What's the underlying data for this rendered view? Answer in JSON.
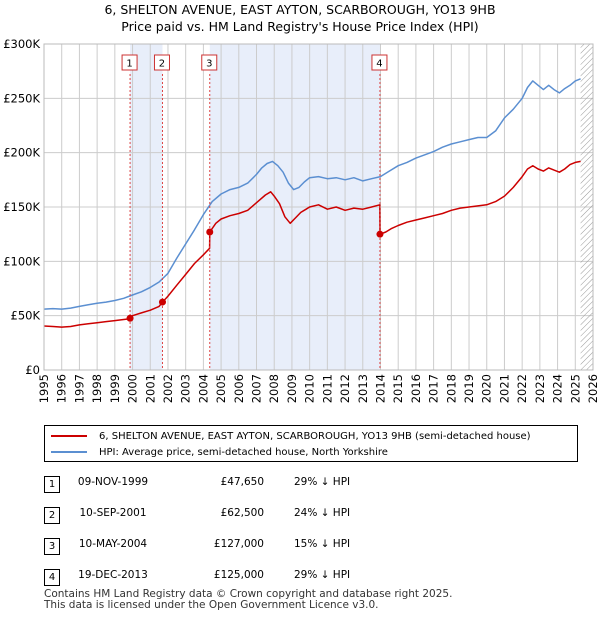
{
  "title": {
    "line1": "6, SHELTON AVENUE, EAST AYTON, SCARBOROUGH, YO13 9HB",
    "line2": "Price paid vs. HM Land Registry's House Price Index (HPI)"
  },
  "legend": {
    "price_label": "6, SHELTON AVENUE, EAST AYTON, SCARBOROUGH, YO13 9HB (semi-detached house)",
    "hpi_label": "HPI: Average price, semi-detached house, North Yorkshire"
  },
  "sales": [
    {
      "num": "1",
      "date": "09-NOV-1999",
      "price": "£47,650",
      "hpi": "29% ↓ HPI"
    },
    {
      "num": "2",
      "date": "10-SEP-2001",
      "price": "£62,500",
      "hpi": "24% ↓ HPI"
    },
    {
      "num": "3",
      "date": "10-MAY-2004",
      "price": "£127,000",
      "hpi": "15% ↓ HPI"
    },
    {
      "num": "4",
      "date": "19-DEC-2013",
      "price": "£125,000",
      "hpi": "29% ↓ HPI"
    }
  ],
  "footer": {
    "line1": "Contains HM Land Registry data © Crown copyright and database right 2025.",
    "line2": "This data is licensed under the Open Government Licence v3.0."
  },
  "colors": {
    "price": "#cc0000",
    "hpi": "#5b8fd1",
    "shade": "#e8eefa",
    "grid": "#cccccc",
    "marker_line": "#dd4444"
  },
  "chart_data": {
    "type": "line",
    "xlim": [
      1995,
      2026
    ],
    "ylim": [
      0,
      300000
    ],
    "x_ticks": [
      "1995",
      "1996",
      "1997",
      "1998",
      "1999",
      "2000",
      "2001",
      "2002",
      "2003",
      "2004",
      "2005",
      "2006",
      "2007",
      "2008",
      "2009",
      "2010",
      "2011",
      "2012",
      "2013",
      "2014",
      "2015",
      "2016",
      "2017",
      "2018",
      "2019",
      "2020",
      "2021",
      "2022",
      "2023",
      "2024",
      "2025",
      "2026"
    ],
    "y_ticks": [
      {
        "value": 0,
        "label": "£0"
      },
      {
        "value": 50000,
        "label": "£50K"
      },
      {
        "value": 100000,
        "label": "£100K"
      },
      {
        "value": 150000,
        "label": "£150K"
      },
      {
        "value": 200000,
        "label": "£200K"
      },
      {
        "value": 250000,
        "label": "£250K"
      },
      {
        "value": 300000,
        "label": "£300K"
      }
    ],
    "shaded_ranges": [
      [
        1999.86,
        2001.69
      ],
      [
        2004.36,
        2013.97
      ]
    ],
    "future_from": 2025.3,
    "series": [
      {
        "name": "6, SHELTON AVENUE, EAST AYTON, SCARBOROUGH, YO13 9HB (semi-detached house)",
        "x": [
          1995,
          1995.5,
          1996,
          1996.5,
          1997,
          1997.5,
          1998,
          1998.5,
          1999,
          1999.5,
          1999.85,
          1999.86,
          2000,
          2000.5,
          2001,
          2001.5,
          2001.69,
          2002,
          2002.5,
          2003,
          2003.5,
          2004,
          2004.35,
          2004.36,
          2004.7,
          2005,
          2005.5,
          2006,
          2006.5,
          2007,
          2007.5,
          2007.8,
          2008,
          2008.3,
          2008.6,
          2008.9,
          2009.2,
          2009.5,
          2009.8,
          2010,
          2010.5,
          2011,
          2011.5,
          2012,
          2012.5,
          2013,
          2013.5,
          2013.96,
          2013.97,
          2014.3,
          2014.6,
          2015,
          2015.5,
          2016,
          2016.5,
          2017,
          2017.5,
          2018,
          2018.5,
          2019,
          2019.5,
          2020,
          2020.5,
          2021,
          2021.5,
          2022,
          2022.3,
          2022.6,
          2022.9,
          2023.2,
          2023.5,
          2023.8,
          2024.1,
          2024.4,
          2024.7,
          2025,
          2025.3
        ],
        "values": [
          40500,
          40000,
          39500,
          40000,
          41500,
          42500,
          43500,
          44500,
          45500,
          46500,
          47200,
          47650,
          50000,
          52500,
          55000,
          58500,
          62500,
          68000,
          78000,
          88000,
          98000,
          106000,
          112000,
          127000,
          135000,
          139000,
          142000,
          144000,
          147000,
          154000,
          161000,
          164000,
          160000,
          153000,
          141000,
          135000,
          140000,
          145000,
          148000,
          150000,
          152000,
          148000,
          150000,
          147000,
          149000,
          148000,
          150000,
          152000,
          125000,
          127000,
          130000,
          133000,
          136000,
          138000,
          140000,
          142000,
          144000,
          147000,
          149000,
          150000,
          151000,
          152000,
          155000,
          160000,
          168000,
          178000,
          185000,
          188000,
          185000,
          183000,
          186000,
          184000,
          182000,
          185000,
          189000,
          191000,
          192000
        ]
      },
      {
        "name": "HPI: Average price, semi-detached house, North Yorkshire",
        "x": [
          1995,
          1995.5,
          1996,
          1996.5,
          1997,
          1997.5,
          1998,
          1998.5,
          1999,
          1999.5,
          2000,
          2000.5,
          2001,
          2001.5,
          2002,
          2002.5,
          2003,
          2003.5,
          2004,
          2004.5,
          2005,
          2005.5,
          2006,
          2006.5,
          2007,
          2007.3,
          2007.6,
          2007.9,
          2008.2,
          2008.5,
          2008.8,
          2009.1,
          2009.4,
          2009.7,
          2010,
          2010.5,
          2011,
          2011.5,
          2012,
          2012.5,
          2013,
          2013.5,
          2014,
          2014.5,
          2015,
          2015.5,
          2016,
          2016.5,
          2017,
          2017.5,
          2018,
          2018.5,
          2019,
          2019.5,
          2020,
          2020.5,
          2021,
          2021.5,
          2022,
          2022.3,
          2022.6,
          2022.9,
          2023.2,
          2023.5,
          2023.8,
          2024.1,
          2024.4,
          2024.7,
          2025,
          2025.3
        ],
        "values": [
          56000,
          56500,
          56000,
          57000,
          58500,
          60000,
          61500,
          62500,
          64000,
          66000,
          69000,
          72000,
          76000,
          81000,
          89000,
          103000,
          116000,
          129000,
          143000,
          155000,
          162000,
          166000,
          168000,
          172000,
          180000,
          186000,
          190000,
          192000,
          188000,
          182000,
          172000,
          166000,
          168000,
          173000,
          177000,
          178000,
          176000,
          177000,
          175000,
          177000,
          174000,
          176000,
          178000,
          183000,
          188000,
          191000,
          195000,
          198000,
          201000,
          205000,
          208000,
          210000,
          212000,
          214000,
          214000,
          220000,
          232000,
          240000,
          250000,
          260000,
          266000,
          262000,
          258000,
          262000,
          258000,
          255000,
          259000,
          262000,
          266000,
          268000
        ]
      }
    ],
    "sale_points": [
      {
        "num": "1",
        "x": 1999.86,
        "value": 47650
      },
      {
        "num": "2",
        "x": 2001.69,
        "value": 62500
      },
      {
        "num": "3",
        "x": 2004.36,
        "value": 127000
      },
      {
        "num": "4",
        "x": 2013.97,
        "value": 125000
      }
    ]
  }
}
